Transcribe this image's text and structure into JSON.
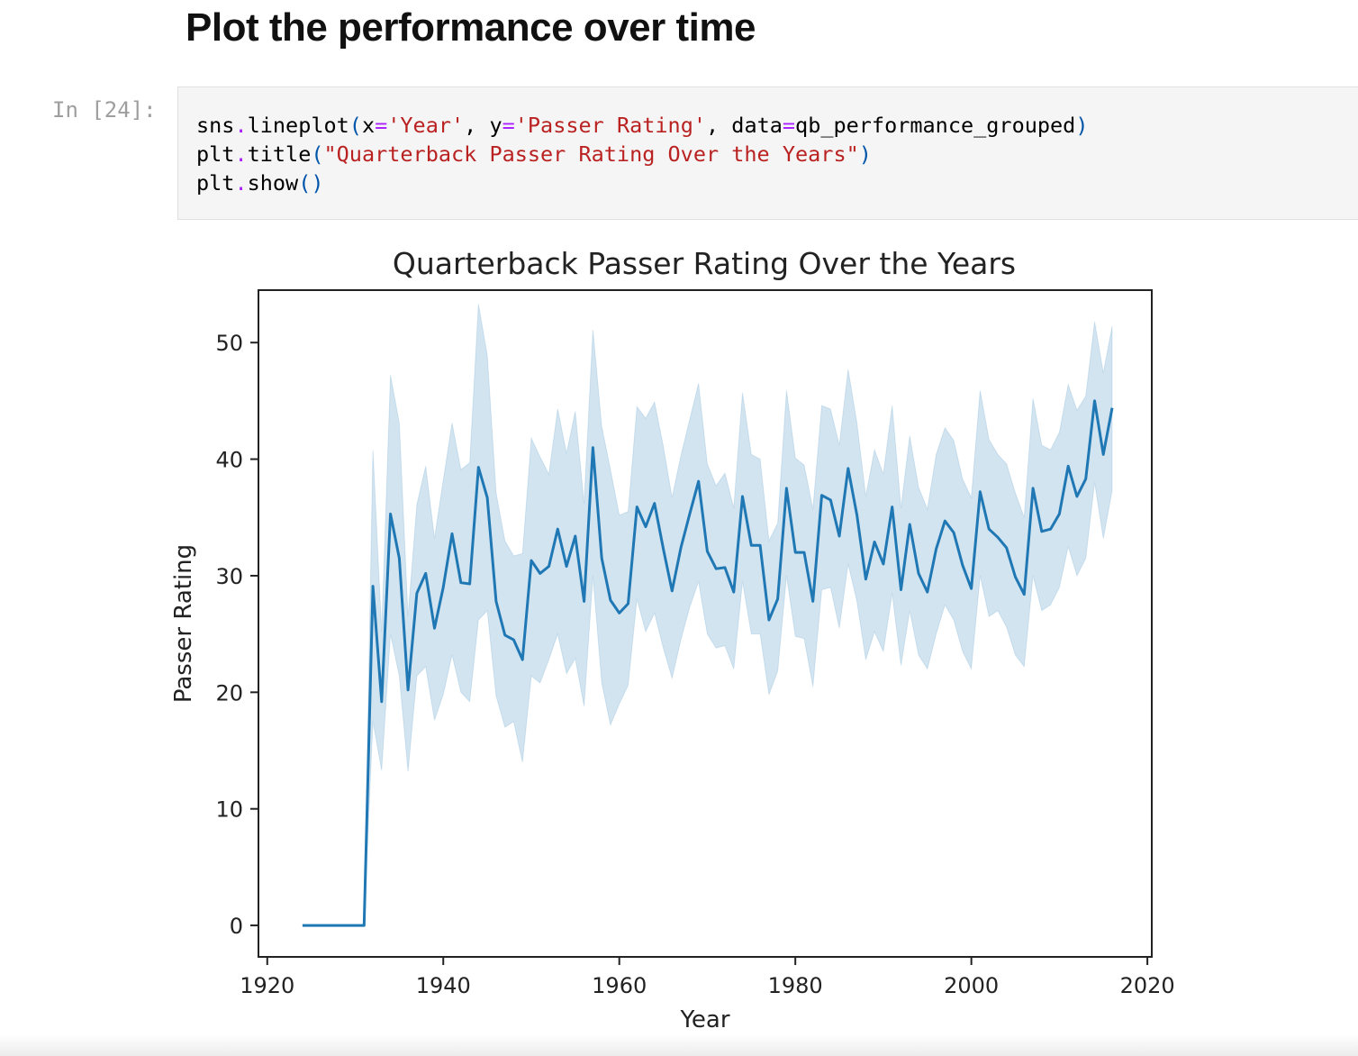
{
  "notebook": {
    "heading": "Plot the performance over time",
    "cell_prompt": "In [24]:",
    "code": {
      "line1": {
        "a": "sns",
        "dot": ".",
        "b": "lineplot",
        "p1": "(",
        "c": "x",
        "eq1": "=",
        "s1": "'Year'",
        "d": ", ",
        "e": "y",
        "eq2": "=",
        "s2": "'Passer Rating'",
        "f": ", ",
        "g": "data",
        "eq3": "=",
        "h": "qb_performance_grouped",
        "p2": ")"
      },
      "line2": {
        "a": "plt",
        "dot": ".",
        "b": "title",
        "p1": "(",
        "s1": "\"Quarterback Passer Rating Over the Years\"",
        "p2": ")"
      },
      "line3": {
        "a": "plt",
        "dot": ".",
        "b": "show",
        "p1": "(",
        "p2": ")"
      }
    }
  },
  "chart_data": {
    "type": "line",
    "title": "Quarterback Passer Rating Over the Years",
    "xlabel": "Year",
    "ylabel": "Passer Rating",
    "xlim": [
      1919,
      2020.5
    ],
    "ylim": [
      -2.7,
      54.5
    ],
    "xticks": [
      1920,
      1940,
      1960,
      1980,
      2000,
      2020
    ],
    "yticks": [
      0,
      10,
      20,
      30,
      40,
      50
    ],
    "grid": false,
    "line_color": "#1f77b4",
    "band_color": "#1f77b4",
    "x": [
      1924,
      1925,
      1926,
      1927,
      1928,
      1929,
      1930,
      1931,
      1932,
      1933,
      1934,
      1935,
      1936,
      1937,
      1938,
      1939,
      1940,
      1941,
      1942,
      1943,
      1944,
      1945,
      1946,
      1947,
      1948,
      1949,
      1950,
      1951,
      1952,
      1953,
      1954,
      1955,
      1956,
      1957,
      1958,
      1959,
      1960,
      1961,
      1962,
      1963,
      1964,
      1965,
      1966,
      1967,
      1968,
      1969,
      1970,
      1971,
      1972,
      1973,
      1974,
      1975,
      1976,
      1977,
      1978,
      1979,
      1980,
      1981,
      1982,
      1983,
      1984,
      1985,
      1986,
      1987,
      1988,
      1989,
      1990,
      1991,
      1992,
      1993,
      1994,
      1995,
      1996,
      1997,
      1998,
      1999,
      2000,
      2001,
      2002,
      2003,
      2004,
      2005,
      2006,
      2007,
      2008,
      2009,
      2010,
      2011,
      2012,
      2013,
      2014,
      2015,
      2016
    ],
    "series": [
      {
        "y": [
          0,
          0,
          0,
          0,
          0,
          0,
          0,
          0,
          29.1,
          19.2,
          35.3,
          31.5,
          20.2,
          28.5,
          30.2,
          25.5,
          29.0,
          33.6,
          29.4,
          29.3,
          39.3,
          36.7,
          27.8,
          24.9,
          24.5,
          22.8,
          31.3,
          30.2,
          30.8,
          34.0,
          30.8,
          33.4,
          27.8,
          41.0,
          31.5,
          27.9,
          26.8,
          27.6,
          35.9,
          34.2,
          36.2,
          32.3,
          28.7,
          32.4,
          35.3,
          38.1,
          32.1,
          30.6,
          30.7,
          28.6,
          36.8,
          32.6,
          32.6,
          26.2,
          28.0,
          37.5,
          32.0,
          32.0,
          27.8,
          36.9,
          36.5,
          33.4,
          39.2,
          35.2,
          29.7,
          32.9,
          31.0,
          35.9,
          28.8,
          34.4,
          30.2,
          28.6,
          32.3,
          34.7,
          33.7,
          30.9,
          28.9,
          37.2,
          34.0,
          33.3,
          32.4,
          29.9,
          28.4,
          37.5,
          33.8,
          34.0,
          35.3,
          39.4,
          36.8,
          38.3,
          45.0,
          40.4,
          44.4
        ],
        "lower": [
          0,
          0,
          0,
          0,
          0,
          0,
          0,
          0,
          17.5,
          13.3,
          25.0,
          21.4,
          13.2,
          21.4,
          22.2,
          17.6,
          19.8,
          23.2,
          20.0,
          19.2,
          26.2,
          27.0,
          19.7,
          17.0,
          17.5,
          14.0,
          21.4,
          20.8,
          22.8,
          25.0,
          21.6,
          22.9,
          18.8,
          30.0,
          20.8,
          17.2,
          19.0,
          20.6,
          28.0,
          25.2,
          26.8,
          23.8,
          21.2,
          24.5,
          27.3,
          29.5,
          25.0,
          23.8,
          24.0,
          22.0,
          29.5,
          25.0,
          25.0,
          19.8,
          21.8,
          30.0,
          24.8,
          24.6,
          20.5,
          28.8,
          29.0,
          25.5,
          31.0,
          27.8,
          22.8,
          25.2,
          23.5,
          28.5,
          22.3,
          27.0,
          23.2,
          22.0,
          25.0,
          27.5,
          26.2,
          23.5,
          22.0,
          30.0,
          26.5,
          27.0,
          25.6,
          23.2,
          22.2,
          30.0,
          27.0,
          27.5,
          29.0,
          32.5,
          30.0,
          31.5,
          38.0,
          33.2,
          37.3
        ],
        "upper": [
          0,
          0,
          0,
          0,
          0,
          0,
          0,
          0,
          40.8,
          25.2,
          47.2,
          43.1,
          26.5,
          36.1,
          39.4,
          33.2,
          38.2,
          43.1,
          39.1,
          39.7,
          53.3,
          48.9,
          37.1,
          33.0,
          31.7,
          31.9,
          41.8,
          40.2,
          38.7,
          44.3,
          40.5,
          44.1,
          36.2,
          51.1,
          42.8,
          39.1,
          35.2,
          35.5,
          44.5,
          43.5,
          44.9,
          41.1,
          36.7,
          40.3,
          43.4,
          46.5,
          39.6,
          37.7,
          38.8,
          35.8,
          45.7,
          40.4,
          40.0,
          33.0,
          34.5,
          45.9,
          40.1,
          39.5,
          35.7,
          44.6,
          44.3,
          41.2,
          47.7,
          43.1,
          36.8,
          40.8,
          38.7,
          44.6,
          35.8,
          42.0,
          37.6,
          35.7,
          40.4,
          42.7,
          41.6,
          38.3,
          36.7,
          45.9,
          41.7,
          40.4,
          39.6,
          37.1,
          35.0,
          45.2,
          41.2,
          40.8,
          42.3,
          46.4,
          44.2,
          45.4,
          51.8,
          47.4,
          51.4
        ]
      }
    ]
  }
}
